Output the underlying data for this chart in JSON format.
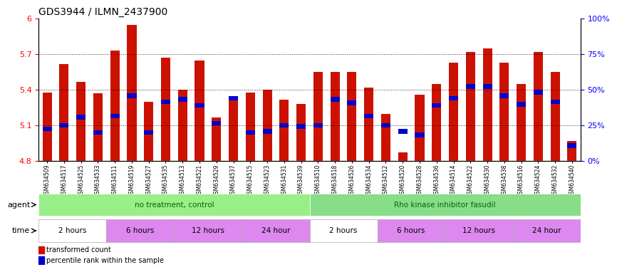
{
  "title": "GDS3944 / ILMN_2437900",
  "samples": [
    "GSM634509",
    "GSM634517",
    "GSM634525",
    "GSM634533",
    "GSM634511",
    "GSM634519",
    "GSM634527",
    "GSM634535",
    "GSM634513",
    "GSM634521",
    "GSM634529",
    "GSM634537",
    "GSM634515",
    "GSM634523",
    "GSM634531",
    "GSM634539",
    "GSM634510",
    "GSM634518",
    "GSM634526",
    "GSM634534",
    "GSM634512",
    "GSM634520",
    "GSM634528",
    "GSM634536",
    "GSM634514",
    "GSM634522",
    "GSM634530",
    "GSM634538",
    "GSM634516",
    "GSM634524",
    "GSM634532",
    "GSM634540"
  ],
  "bar_values": [
    5.38,
    5.62,
    5.47,
    5.37,
    5.73,
    5.95,
    5.3,
    5.67,
    5.4,
    5.65,
    5.17,
    5.33,
    5.38,
    5.4,
    5.32,
    5.28,
    5.55,
    5.55,
    5.55,
    5.42,
    5.2,
    4.87,
    5.36,
    5.45,
    5.63,
    5.72,
    5.75,
    5.63,
    5.45,
    5.72,
    5.55,
    4.97
  ],
  "percentile_values": [
    5.07,
    5.1,
    5.17,
    5.04,
    5.18,
    5.35,
    5.04,
    5.3,
    5.32,
    5.27,
    5.12,
    5.33,
    5.04,
    5.05,
    5.1,
    5.09,
    5.1,
    5.32,
    5.29,
    5.18,
    5.1,
    5.05,
    5.02,
    5.27,
    5.33,
    5.43,
    5.43,
    5.35,
    5.28,
    5.38,
    5.3,
    4.93
  ],
  "y_min": 4.8,
  "y_max": 6.0,
  "y_ticks_left": [
    4.8,
    5.1,
    5.4,
    5.7,
    6.0
  ],
  "y_ticks_right": [
    0,
    25,
    50,
    75,
    100
  ],
  "bar_color": "#cc1100",
  "marker_color": "#0000cc",
  "agent_groups": [
    {
      "label": "no treatment, control",
      "start": 0,
      "end": 16,
      "color": "#99ee88"
    },
    {
      "label": "Rho kinase inhibitor fasudil",
      "start": 16,
      "end": 32,
      "color": "#88dd88"
    }
  ],
  "time_groups": [
    {
      "label": "2 hours",
      "start": 0,
      "end": 4,
      "color": "#ffffff"
    },
    {
      "label": "6 hours",
      "start": 4,
      "end": 8,
      "color": "#dd88dd"
    },
    {
      "label": "12 hours",
      "start": 8,
      "end": 12,
      "color": "#dd88dd"
    },
    {
      "label": "24 hour",
      "start": 12,
      "end": 16,
      "color": "#dd88dd"
    },
    {
      "label": "2 hours",
      "start": 16,
      "end": 20,
      "color": "#ffffff"
    },
    {
      "label": "6 hours",
      "start": 20,
      "end": 24,
      "color": "#dd88dd"
    },
    {
      "label": "12 hours",
      "start": 24,
      "end": 28,
      "color": "#dd88dd"
    },
    {
      "label": "24 hour",
      "start": 28,
      "end": 32,
      "color": "#dd88dd"
    }
  ],
  "legend_items": [
    {
      "label": "transformed count",
      "color": "#cc1100"
    },
    {
      "label": "percentile rank within the sample",
      "color": "#0000cc"
    }
  ]
}
